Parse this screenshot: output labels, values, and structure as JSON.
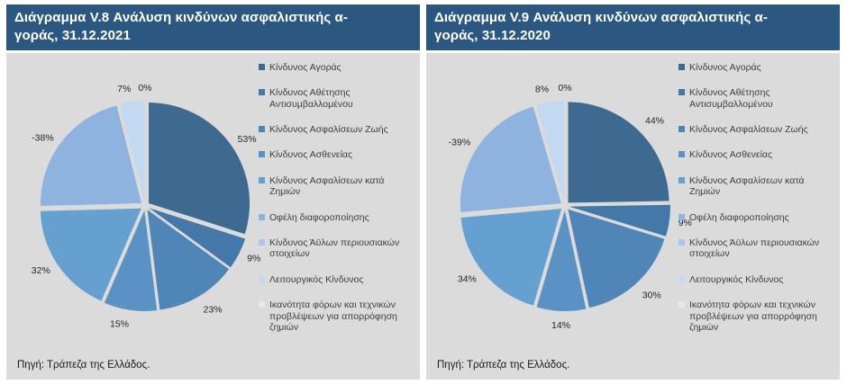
{
  "page": {
    "background": "#ffffff",
    "header_bg": "#2B5781",
    "header_text_color": "#ffffff",
    "chart_area_bg": "#DBDBDB"
  },
  "chart_data": [
    {
      "type": "pie",
      "title": "Διάγραμμα V.8 Ανάλυση κινδύνων ασφαλιστικής α-γοράς, 31.12.2021",
      "title_line1": "Διάγραμμα V.8 Ανάλυση κινδύνων ασφαλιστικής α-",
      "title_line2": "γοράς, 31.12.2021",
      "date": "31.12.2021",
      "legend_position": "right",
      "source": "Πηγή: Τράπεζα της Ελλάδος.",
      "slices": [
        {
          "label": "Κίνδυνος Αγοράς",
          "value": 53,
          "pct_label": "53%",
          "color": "#3E6A92"
        },
        {
          "label": "Κίνδυνος Αθέτησης Αντισυμβαλλομένου",
          "value": 9,
          "pct_label": "9%",
          "color": "#4478A8"
        },
        {
          "label": "Κίνδυνος Ασφαλίσεων Ζωής",
          "value": 23,
          "pct_label": "23%",
          "color": "#4F85B7"
        },
        {
          "label": "Κίνδυνος Ασθενείας",
          "value": 15,
          "pct_label": "15%",
          "color": "#5B92C5"
        },
        {
          "label": "Κίνδυνος Ασφαλίσεων κατά Ζημιών",
          "value": 32,
          "pct_label": "32%",
          "color": "#66A0D1"
        },
        {
          "label": "Οφέλη διαφοροποίησης",
          "value": -38,
          "pct_label": "-38%",
          "color": "#8DB3DE"
        },
        {
          "label": "Κίνδυνος Άϋλων περιουσιακών στοιχείων",
          "value": 0,
          "pct_label": "",
          "color": "#A9C7EA"
        },
        {
          "label": "Λειτουργικός Κίνδυνος",
          "value": 7,
          "pct_label": "7%",
          "color": "#C3D9F1"
        },
        {
          "label": "Ικανότητα φόρων και τεχνικών προβλέψεων για απορρόφηση ζημιών",
          "value": 0,
          "pct_label": "0%",
          "color": "#DDE9F7"
        }
      ]
    },
    {
      "type": "pie",
      "title": "Διάγραμμα V.9 Ανάλυση κινδύνων ασφαλιστικής α-γοράς, 31.12.2020",
      "title_line1": "Διάγραμμα V.9 Ανάλυση κινδύνων ασφαλιστικής α-",
      "title_line2": "γοράς, 31.12.2020",
      "date": "31.12.2020",
      "legend_position": "right",
      "source": "Πηγή: Τράπεζα της Ελλάδος.",
      "slices": [
        {
          "label": "Κίνδυνος Αγοράς",
          "value": 44,
          "pct_label": "44%",
          "color": "#3E6A92"
        },
        {
          "label": "Κίνδυνος Αθέτησης Αντισυμβαλλομένου",
          "value": 9,
          "pct_label": "9%",
          "color": "#4478A8"
        },
        {
          "label": "Κίνδυνος Ασφαλίσεων Ζωής",
          "value": 30,
          "pct_label": "30%",
          "color": "#4F85B7"
        },
        {
          "label": "Κίνδυνος Ασθενείας",
          "value": 14,
          "pct_label": "14%",
          "color": "#5B92C5"
        },
        {
          "label": "Κίνδυνος Ασφαλίσεων κατά Ζημιών",
          "value": 34,
          "pct_label": "34%",
          "color": "#66A0D1"
        },
        {
          "label": "Οφέλη διαφοροποίησης",
          "value": -39,
          "pct_label": "-39%",
          "color": "#8DB3DE"
        },
        {
          "label": "Κίνδυνος Άϋλων περιουσιακών στοιχείων",
          "value": 0,
          "pct_label": "",
          "color": "#A9C7EA"
        },
        {
          "label": "Λειτουργικός Κίνδυνος",
          "value": 8,
          "pct_label": "8%",
          "color": "#C3D9F1"
        },
        {
          "label": "Ικανότητα φόρων και τεχνικών προβλέψεων για απορρόφηση ζημιών",
          "value": 0,
          "pct_label": "0%",
          "color": "#DDE9F7"
        }
      ]
    }
  ]
}
